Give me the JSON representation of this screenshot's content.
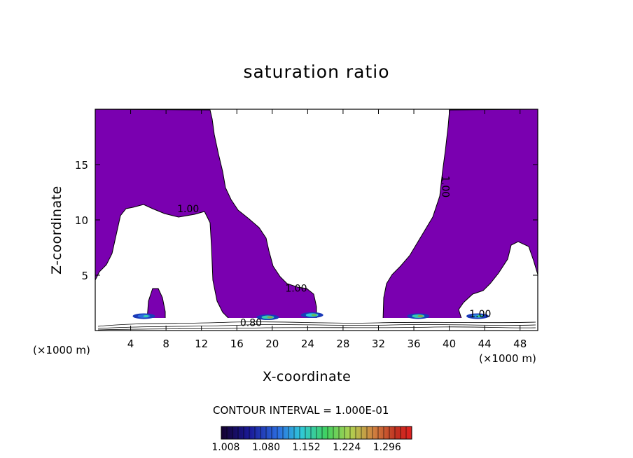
{
  "chart_data": {
    "type": "heatmap",
    "title": "saturation ratio",
    "xlabel": "X-coordinate",
    "ylabel": "Z-coordinate",
    "x_unit_left": "(×1000 m)",
    "x_unit_right": "(×1000 m)",
    "xlim": [
      0,
      50
    ],
    "ylim": [
      0,
      20
    ],
    "x_ticks": [
      4,
      8,
      12,
      16,
      20,
      24,
      28,
      32,
      36,
      40,
      44,
      48
    ],
    "y_ticks": [
      5,
      10,
      15
    ],
    "contour_interval_text": "CONTOUR INTERVAL = 1.000E-01",
    "contour_labels": [
      {
        "text": "1.00",
        "x": 10.5,
        "z": 10.7
      },
      {
        "text": "1.00",
        "x": 22.7,
        "z": 3.5
      },
      {
        "text": "1.00",
        "x": 39.2,
        "z": 13.0,
        "rotated": true
      },
      {
        "text": "0.80",
        "x": 17.6,
        "z": 0.4
      },
      {
        "text": "1.00",
        "x": 43.5,
        "z": 1.2
      }
    ],
    "colorbar": {
      "ticks": [
        "1.008",
        "1.080",
        "1.152",
        "1.224",
        "1.296"
      ],
      "range": [
        1.0,
        1.34
      ]
    },
    "fill_color": "#7a00b0",
    "supersaturation_patches": [
      {
        "x": 5.5,
        "z": 1.3,
        "intensity": 0.15
      },
      {
        "x": 19.5,
        "z": 1.2,
        "intensity": 0.35
      },
      {
        "x": 24.5,
        "z": 1.4,
        "intensity": 0.3
      },
      {
        "x": 36.5,
        "z": 1.3,
        "intensity": 0.35
      },
      {
        "x": 43.2,
        "z": 1.3,
        "intensity": 0.2
      }
    ]
  }
}
